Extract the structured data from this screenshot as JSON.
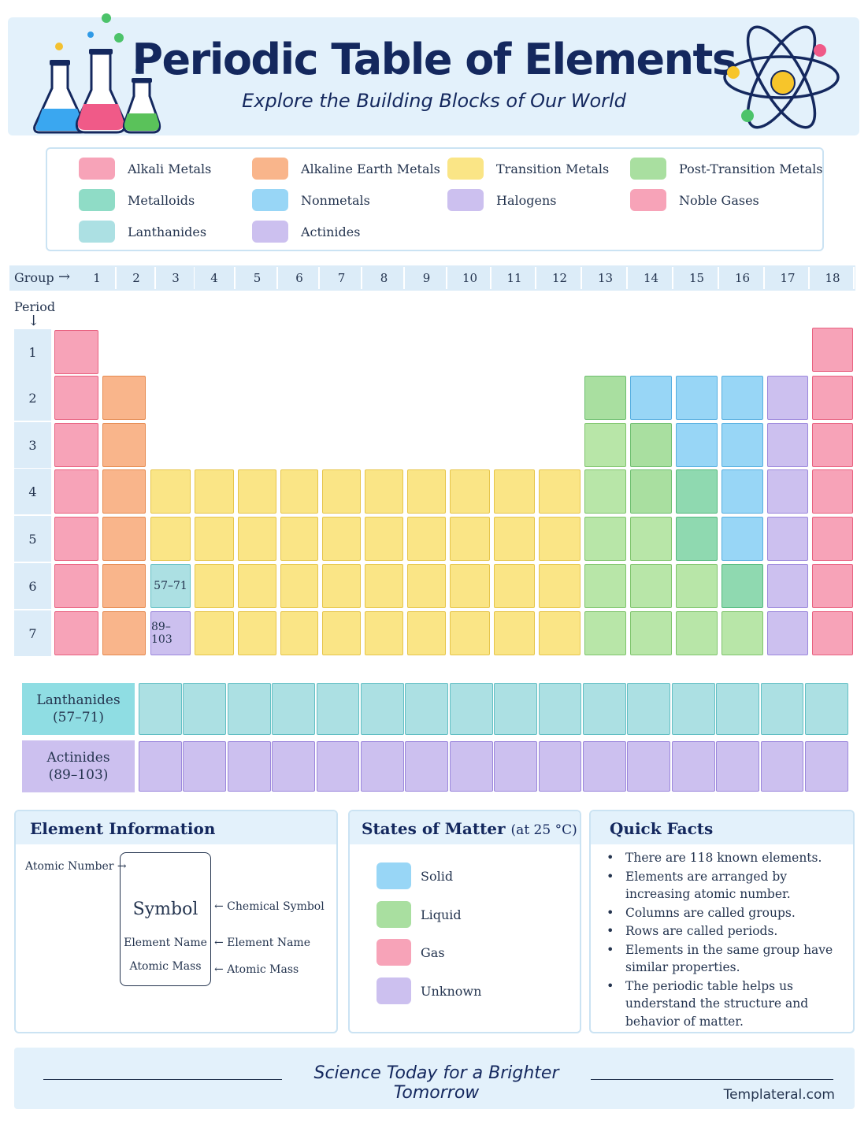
{
  "header": {
    "title": "Periodic Table of Elements",
    "subtitle": "Explore the Building Blocks of Our World"
  },
  "legend": [
    {
      "label": "Alkali Metals",
      "color": "#f7a3b8"
    },
    {
      "label": "Alkaline Earth Metals",
      "color": "#f9b58b"
    },
    {
      "label": "Transition Metals",
      "color": "#fae586"
    },
    {
      "label": "Post-Transition Metals",
      "color": "#a9dfa0"
    },
    {
      "label": "Metalloids",
      "color": "#8fdcc6"
    },
    {
      "label": "Nonmetals",
      "color": "#98d6f6"
    },
    {
      "label": "Halogens",
      "color": "#ccc0ef"
    },
    {
      "label": "Noble Gases",
      "color": "#f7a3b8"
    },
    {
      "label": "Lanthanides",
      "color": "#ace0e3"
    },
    {
      "label": "Actinides",
      "color": "#ccc0ef"
    }
  ],
  "table": {
    "group_label": "Group",
    "group_arrow": "→",
    "period_label": "Period",
    "period_arrow": "↓",
    "groups": [
      "1",
      "2",
      "3",
      "4",
      "5",
      "6",
      "7",
      "8",
      "9",
      "10",
      "11",
      "12",
      "13",
      "14",
      "15",
      "16",
      "17",
      "18"
    ],
    "periods": [
      "1",
      "2",
      "3",
      "4",
      "5",
      "6",
      "7"
    ],
    "lanthanide_placeholder": "57–71",
    "actinide_placeholder": "89–103"
  },
  "f_block": {
    "lanthanides": {
      "name": "Lanthanides",
      "range": "(57–71)"
    },
    "actinides": {
      "name": "Actinides",
      "range": "(89–103)"
    }
  },
  "element_info": {
    "title": "Element Information",
    "atomic_number": "Atomic Number →",
    "symbol": "Symbol",
    "element_name": "Element Name",
    "atomic_mass": "Atomic Mass",
    "symbol_caption": "← Chemical Symbol",
    "name_caption": "← Element Name",
    "mass_caption": "← Atomic Mass"
  },
  "states": {
    "title": "States of Matter",
    "condition": "(at 25 °C)",
    "items": [
      {
        "label": "Solid",
        "color": "#98d6f6"
      },
      {
        "label": "Liquid",
        "color": "#a9dfa0"
      },
      {
        "label": "Gas",
        "color": "#f7a3b8"
      },
      {
        "label": "Unknown",
        "color": "#ccc0ef"
      }
    ]
  },
  "facts": {
    "title": "Quick Facts",
    "items": [
      "There are 118 known elements.",
      "Elements are arranged by increasing atomic number.",
      "Columns are called groups.",
      "Rows are called periods.",
      "Elements in the same group have similar properties.",
      "The periodic table helps us understand the structure and behavior of matter."
    ]
  },
  "footer": {
    "slogan": "Science Today for a Brighter Tomorrow",
    "brand": "Templateral.com"
  }
}
